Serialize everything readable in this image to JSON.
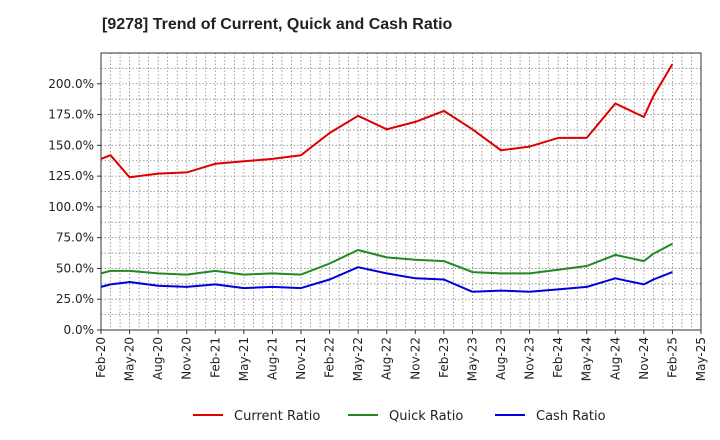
{
  "chart_data": {
    "type": "line",
    "title": "[9278]  Trend of Current, Quick and Cash Ratio",
    "xlabel": "",
    "ylabel": "",
    "ylim": [
      0,
      225
    ],
    "yticks": [
      0,
      25,
      50,
      75,
      100,
      125,
      150,
      175,
      200
    ],
    "ytick_labels": [
      "0.0%",
      "25.0%",
      "50.0%",
      "75.0%",
      "100.0%",
      "125.0%",
      "150.0%",
      "175.0%",
      "200.0%"
    ],
    "x_tick_labels": [
      "Feb-20",
      "May-20",
      "Aug-20",
      "Nov-20",
      "Feb-21",
      "May-21",
      "Aug-21",
      "Nov-21",
      "Feb-22",
      "May-22",
      "Aug-22",
      "Nov-22",
      "Feb-23",
      "May-23",
      "Aug-23",
      "Nov-23",
      "Feb-24",
      "May-24",
      "Aug-24",
      "Nov-24",
      "Feb-25",
      "May-25"
    ],
    "grid": true,
    "legend_position": "bottom",
    "x_months": [
      0,
      1,
      3,
      6,
      9,
      12,
      15,
      18,
      21,
      24,
      27,
      30,
      33,
      36,
      39,
      42,
      45,
      48,
      51,
      54,
      57,
      58,
      60
    ],
    "series": [
      {
        "name": "Current Ratio",
        "color": "#dd0000",
        "values": [
          139,
          142,
          124,
          127,
          128,
          135,
          137,
          139,
          142,
          160,
          174,
          163,
          169,
          178,
          163,
          146,
          149,
          156,
          156,
          184,
          173,
          190,
          216
        ]
      },
      {
        "name": "Quick Ratio",
        "color": "#228822",
        "values": [
          46,
          48,
          48,
          46,
          45,
          48,
          45,
          46,
          45,
          54,
          65,
          59,
          57,
          56,
          47,
          46,
          46,
          49,
          52,
          61,
          56,
          62,
          70
        ]
      },
      {
        "name": "Cash Ratio",
        "color": "#0000dd",
        "values": [
          35,
          37,
          39,
          36,
          35,
          37,
          34,
          35,
          34,
          41,
          51,
          46,
          42,
          41,
          31,
          32,
          31,
          33,
          35,
          42,
          37,
          41,
          47
        ]
      }
    ]
  }
}
